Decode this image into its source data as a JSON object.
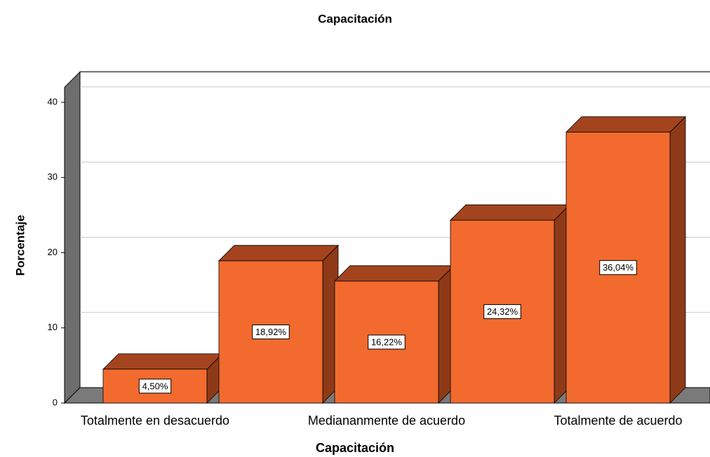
{
  "chart_data": {
    "type": "bar3d",
    "title": "Capacitación",
    "x_label": "Capacitación",
    "y_label": "Porcentaje",
    "categories": [
      "Totalmente en desacuerdo",
      null,
      "Mediananmente de acuerdo",
      null,
      "Totalmente de acuerdo"
    ],
    "values": [
      4.5,
      18.92,
      16.22,
      24.32,
      36.04
    ],
    "value_labels": [
      "4,50%",
      "18,92%",
      "16,22%",
      "24,32%",
      "36,04%"
    ],
    "color": "#f26a2e",
    "ylim": [
      0,
      42
    ],
    "yticks": [
      0,
      10,
      20,
      30,
      40
    ],
    "grid": true
  }
}
